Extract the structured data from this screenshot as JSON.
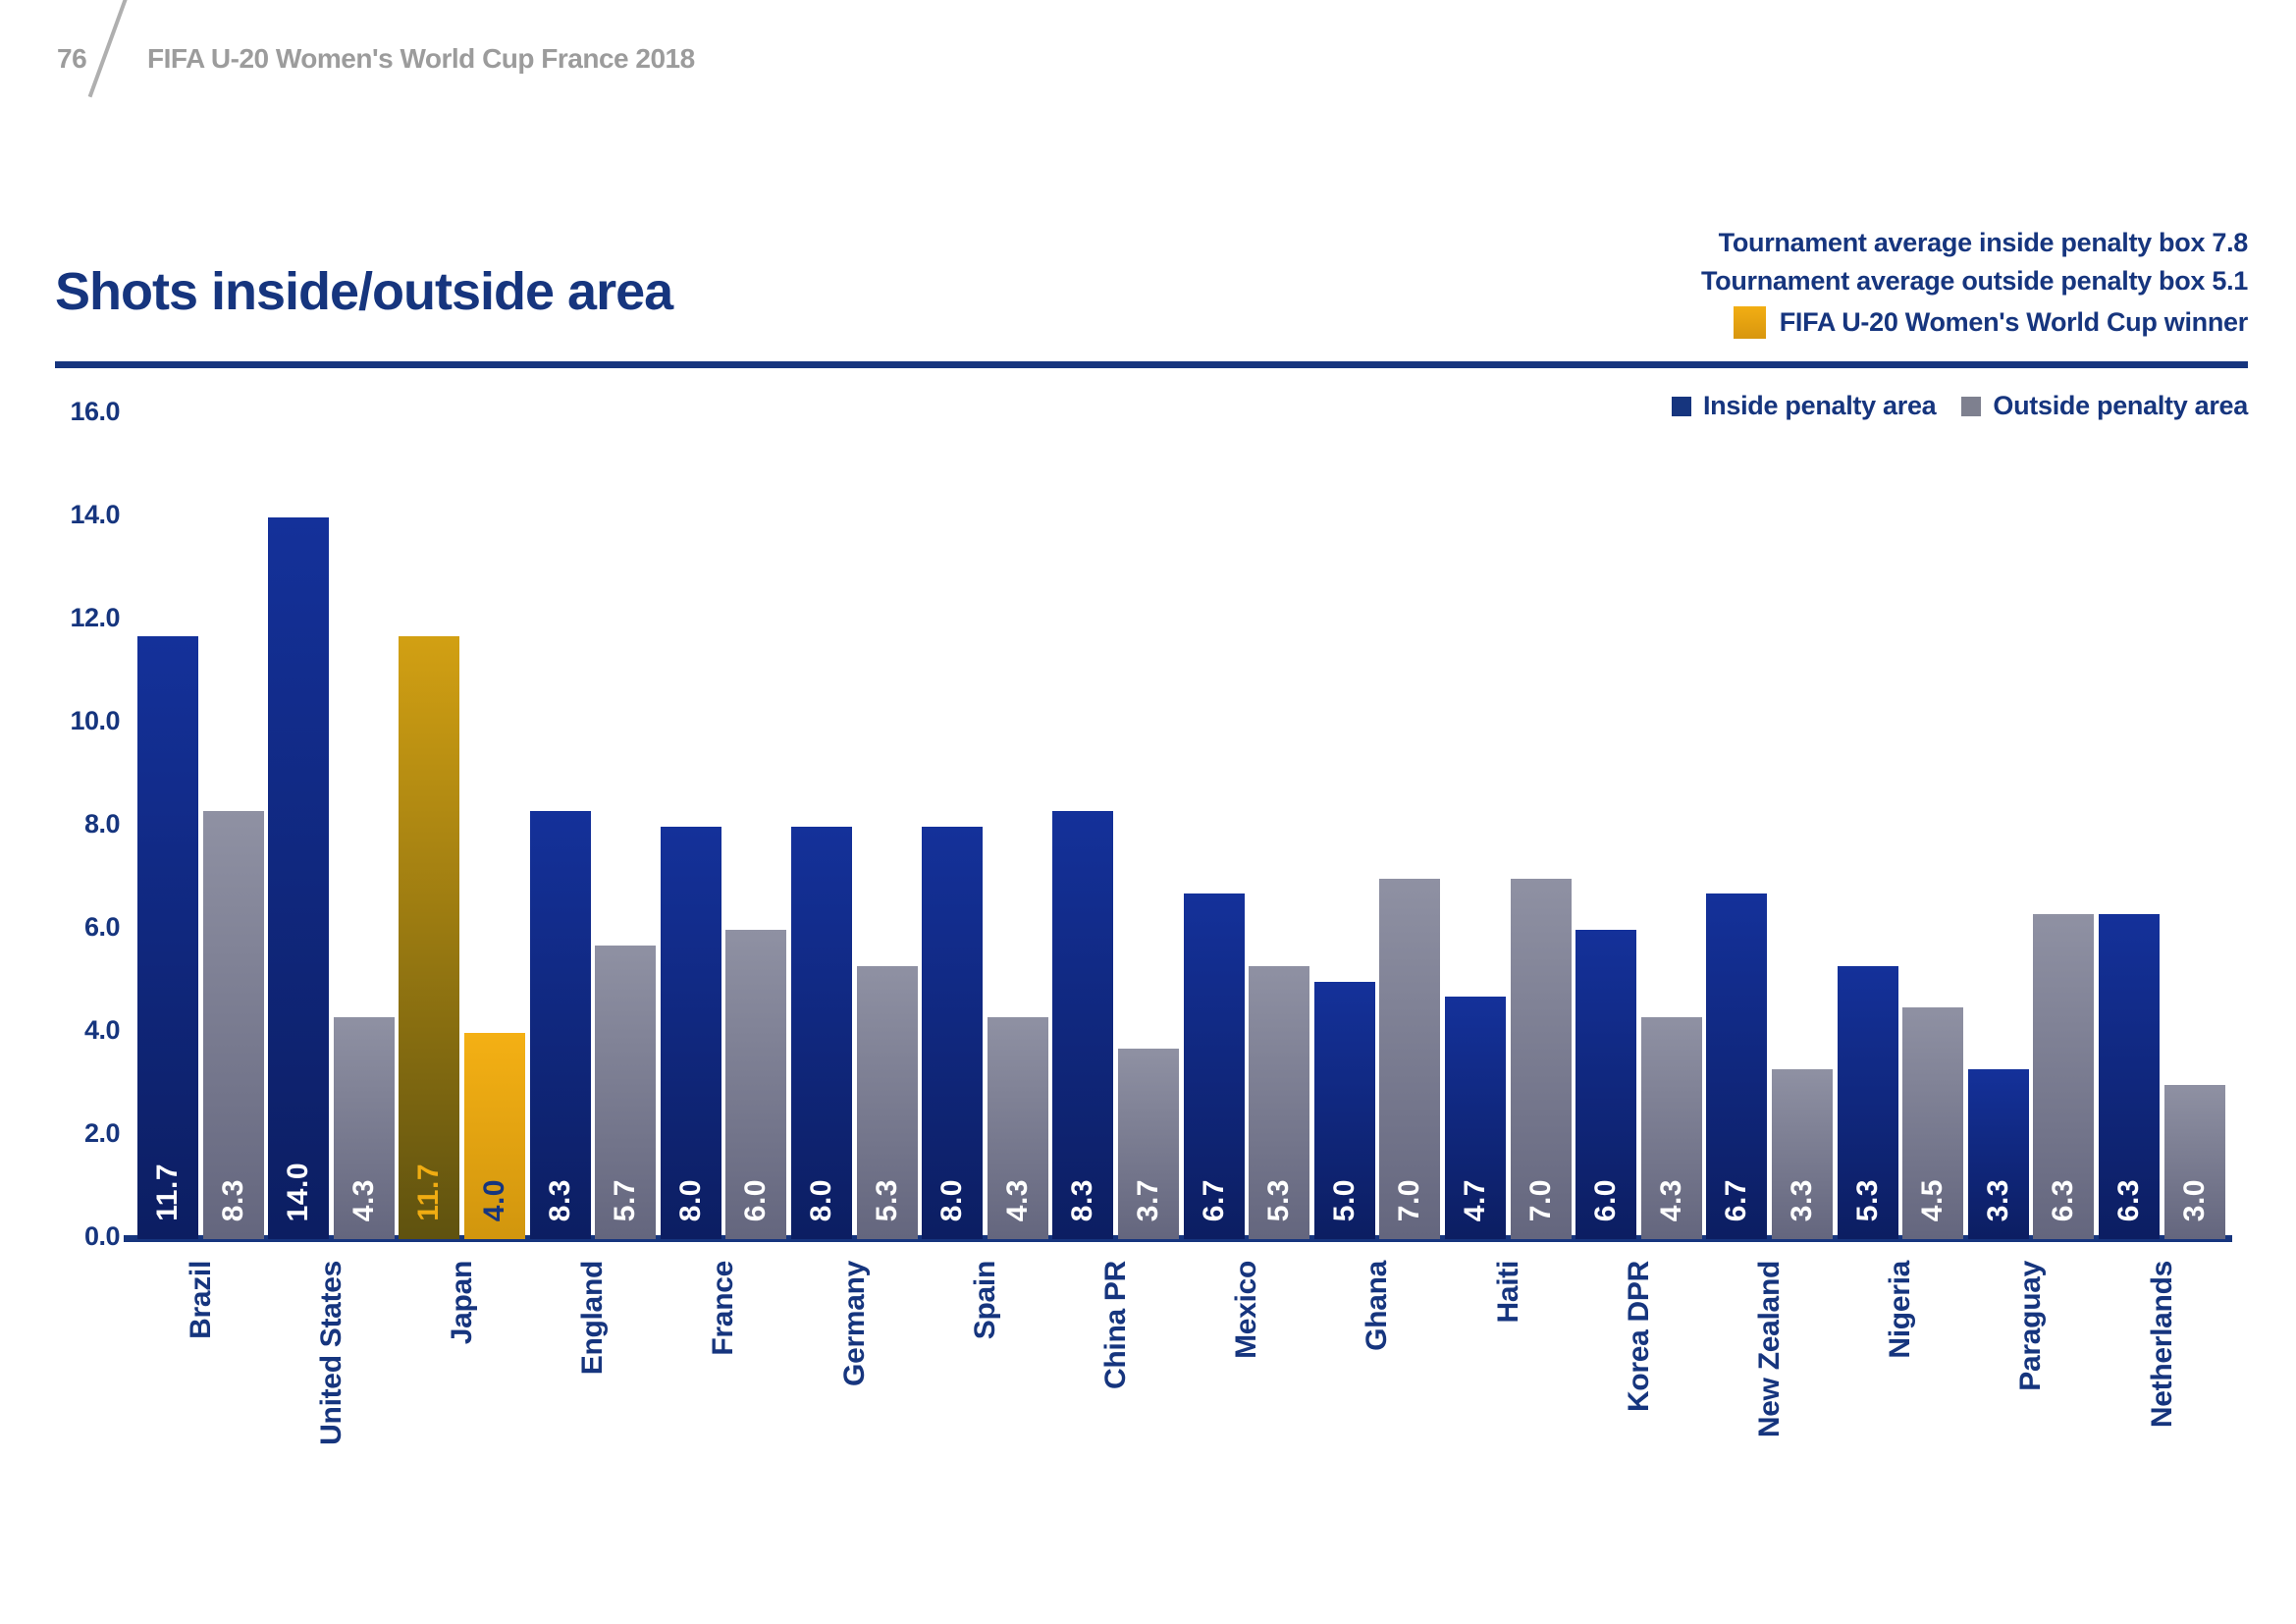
{
  "header": {
    "page_number": "76",
    "title": "FIFA U-20 Women's World Cup France 2018"
  },
  "title": "Shots inside/outside area",
  "annotations": {
    "avg_inside_text": "Tournament average inside penalty box 7.8",
    "avg_outside_text": "Tournament average outside penalty box 5.1"
  },
  "colors": {
    "navy": "#16357E",
    "bar_navy_top": "#14319A",
    "bar_navy_bottom": "#0C1E62",
    "bar_gray_top": "#8F91A3",
    "bar_gray_bottom": "#64667E",
    "gold": "#F0AC12",
    "gold_dark": "#5F520F",
    "header_gray": "#9C9C9C"
  },
  "chart_data": {
    "type": "bar",
    "title": "Shots inside/outside area",
    "categories": [
      "Brazil",
      "United States",
      "Japan",
      "England",
      "France",
      "Germany",
      "Spain",
      "China PR",
      "Mexico",
      "Ghana",
      "Haiti",
      "Korea DPR",
      "New Zealand",
      "Nigeria",
      "Paraguay",
      "Netherlands"
    ],
    "series": [
      {
        "name": "Inside penalty area",
        "color": "#14319A",
        "values": [
          11.7,
          14.0,
          11.7,
          8.3,
          8.0,
          8.0,
          8.0,
          8.3,
          6.7,
          5.0,
          4.7,
          6.0,
          6.7,
          5.3,
          3.3,
          6.3
        ]
      },
      {
        "name": "Outside penalty area",
        "color": "#8F91A3",
        "values": [
          8.3,
          4.3,
          4.0,
          5.7,
          6.0,
          5.3,
          4.3,
          3.7,
          5.3,
          7.0,
          7.0,
          4.3,
          3.3,
          4.5,
          6.3,
          3.0
        ]
      }
    ],
    "highlight": {
      "category": "Japan",
      "color": "#F0AC12",
      "label": "FIFA U-20 Women's World Cup winner"
    },
    "tournament_average_inside": 7.8,
    "tournament_average_outside": 5.1,
    "ylim": [
      0,
      16
    ],
    "ytick_labels": [
      "0.0",
      "2.0",
      "4.0",
      "6.0",
      "8.0",
      "10.0",
      "12.0",
      "14.0",
      "16.0"
    ],
    "grid": false,
    "legend_position": "top-right"
  }
}
